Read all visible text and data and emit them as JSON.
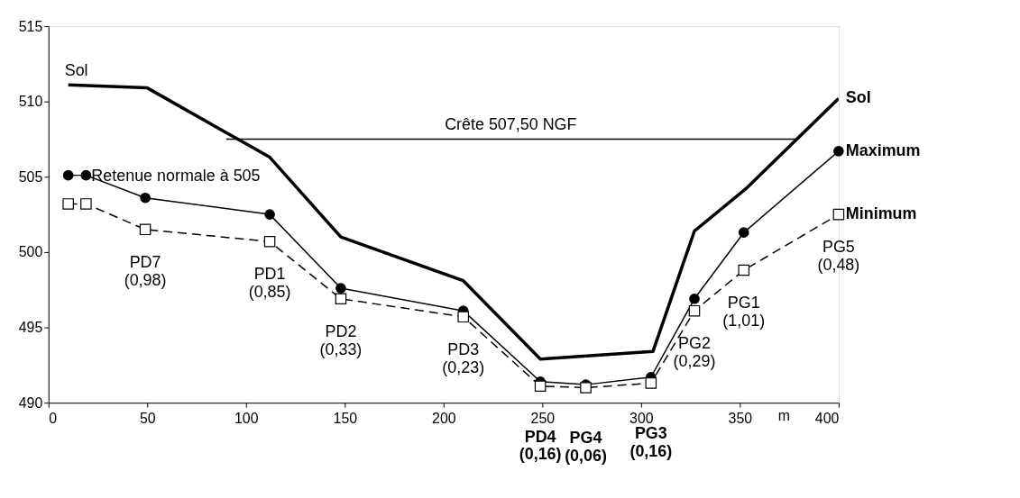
{
  "chart_data": {
    "type": "line",
    "xlabel": "m",
    "xlim": [
      0,
      400
    ],
    "xticks": [
      0,
      50,
      100,
      150,
      200,
      250,
      300,
      350,
      400
    ],
    "ylim": [
      490,
      515
    ],
    "yticks": [
      490,
      495,
      500,
      505,
      510,
      515
    ],
    "grid": false,
    "series": [
      {
        "name": "Sol",
        "color": "#000000",
        "marker": "none",
        "line_style": "solid",
        "x": [
          10,
          50,
          112,
          148,
          210,
          249,
          306,
          327,
          353,
          400
        ],
        "values": [
          511.1,
          510.9,
          506.3,
          501.0,
          498.1,
          492.9,
          493.4,
          501.4,
          504.2,
          510.2
        ]
      },
      {
        "name": "Maximum",
        "color": "#000000",
        "marker": "circle",
        "line_style": "solid",
        "x": [
          10,
          19,
          49,
          112,
          148,
          210,
          249,
          272,
          305,
          327,
          352,
          400
        ],
        "values": [
          505.1,
          505.1,
          503.6,
          502.5,
          497.6,
          496.1,
          491.4,
          491.2,
          491.7,
          496.9,
          501.3,
          506.7
        ]
      },
      {
        "name": "Minimum",
        "color": "#000000",
        "marker": "square",
        "line_style": "dashed",
        "x": [
          10,
          19,
          49,
          112,
          148,
          210,
          249,
          272,
          305,
          327,
          352,
          400
        ],
        "values": [
          503.2,
          503.2,
          501.5,
          500.7,
          496.9,
          495.7,
          491.1,
          491.0,
          491.3,
          496.1,
          498.8,
          502.5
        ]
      },
      {
        "name": "Crête 507,50 NGF",
        "color": "#000000",
        "marker": "none",
        "line_style": "solid",
        "x": [
          90,
          378
        ],
        "values": [
          507.5,
          507.5
        ]
      }
    ],
    "annotations": [
      {
        "text": "Sol",
        "x": 10,
        "y": 511.1
      },
      {
        "text": "Retenue normale à 505",
        "x": 19,
        "y": 505
      },
      {
        "text": "PD7\n(0,98)",
        "x": 49,
        "y": 501.5
      },
      {
        "text": "PD1\n(0,85)",
        "x": 112,
        "y": 500.7
      },
      {
        "text": "PD2\n(0,33)",
        "x": 148,
        "y": 496.9
      },
      {
        "text": "PD3\n(0,23)",
        "x": 210,
        "y": 495.7
      },
      {
        "text": "PD4\n(0,16)",
        "x": 249,
        "y": 491.1
      },
      {
        "text": "PG4\n(0,06)",
        "x": 272,
        "y": 491.0
      },
      {
        "text": "PG3\n(0,16)",
        "x": 305,
        "y": 491.3
      },
      {
        "text": "PG2\n(0,29)",
        "x": 327,
        "y": 496.1
      },
      {
        "text": "PG1\n(1,01)",
        "x": 352,
        "y": 498.8
      },
      {
        "text": "PG5\n(0,48)",
        "x": 400,
        "y": 502.5
      }
    ]
  }
}
